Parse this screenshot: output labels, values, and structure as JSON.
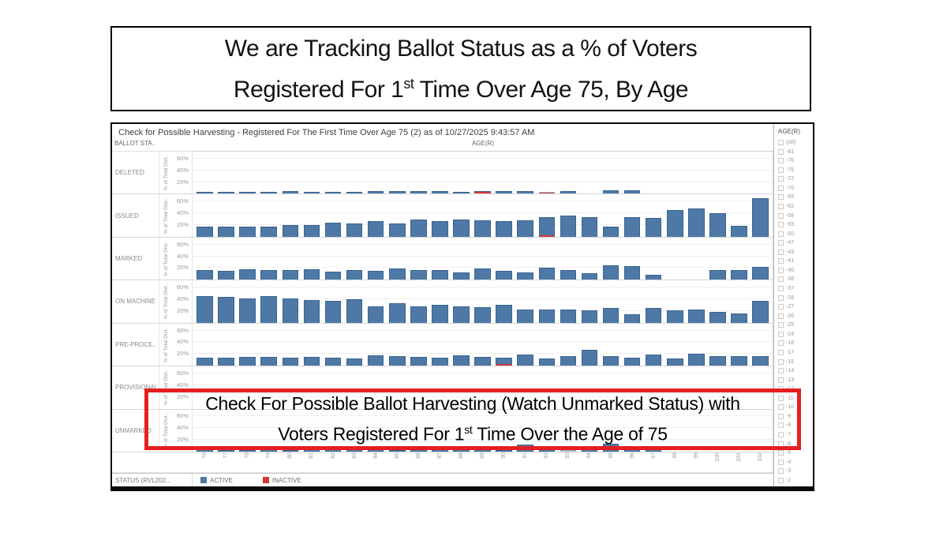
{
  "title": {
    "line1": "We are Tracking Ballot Status as a % of Voters",
    "line2_pre": "Registered For 1",
    "line2_sup": "st",
    "line2_post": " Time Over Age 75, By Age"
  },
  "annotation": {
    "line1": "Check For Possible Ballot Harvesting (Watch Unmarked Status) with",
    "line2_pre": "Voters Registered For 1",
    "line2_sup": "st",
    "line2_post": " Time Over the Age of 75",
    "border_color": "#e51f1f"
  },
  "dashboard": {
    "header": "Check for Possible Harvesting - Registered For The First Time Over Age 75 (2) as of 10/27/2025 9:43:57 AM",
    "row_dimension_header": "BALLOT STA..",
    "column_dimension_header": "AGE(R)",
    "axis_title": "% of Total Dist..",
    "legend": {
      "title": "STATUS (RVL202...",
      "items": [
        {
          "label": "ACTIVE",
          "color": "#4e79a7"
        },
        {
          "label": "INACTIVE",
          "color": "#d0393b"
        }
      ]
    },
    "filter": {
      "title": "AGE(R)",
      "items": [
        "(All)",
        "-81",
        "-76",
        "-75",
        "-72",
        "-70",
        "-65",
        "-62",
        "-58",
        "-55",
        "-50",
        "-47",
        "-43",
        "-41",
        "-40",
        "-38",
        "-37",
        "-28",
        "-27",
        "-26",
        "-25",
        "-24",
        "-18",
        "-17",
        "-15",
        "-14",
        "-13",
        "-12",
        "-11",
        "-10",
        "-9",
        "-8",
        "-7",
        "-6",
        "-5",
        "-4",
        "-3",
        "-2"
      ],
      "all_unchecked": true
    }
  },
  "chart_data": {
    "type": "bar",
    "facet_dimension": "BALLOT STATUS",
    "x_dimension": "AGE(R)",
    "x": [
      76,
      77,
      78,
      79,
      80,
      81,
      82,
      83,
      84,
      85,
      86,
      87,
      88,
      89,
      90,
      91,
      92,
      93,
      94,
      95,
      96,
      97,
      98,
      99,
      100,
      101,
      102
    ],
    "ylabel": "% of Total Dist..",
    "ylim": [
      0,
      72
    ],
    "y_ticks": [
      60,
      40,
      20
    ],
    "grid": true,
    "legend_position": "bottom",
    "bar_color": "#4e79a7",
    "inactive_color": "#d0393b",
    "muted_color": "#b9c5ce",
    "rows": [
      {
        "label": "DELETED",
        "values": [
          3,
          3,
          3,
          3,
          4,
          3,
          3,
          3,
          4,
          4,
          4,
          5,
          3,
          4,
          5,
          4,
          3,
          4,
          0,
          6,
          6,
          0,
          0,
          0,
          0,
          0,
          0
        ],
        "inactive_ages": [
          89,
          92
        ],
        "muted_ages": [
          92
        ]
      },
      {
        "label": "ISSUED",
        "values": [
          17,
          17,
          18,
          17,
          20,
          20,
          24,
          23,
          27,
          23,
          30,
          27,
          30,
          28,
          27,
          28,
          34,
          36,
          33,
          17,
          33,
          32,
          45,
          49,
          40,
          19,
          66
        ],
        "inactive_ages": [
          92
        ],
        "muted_ages": []
      },
      {
        "label": "MARKED",
        "values": [
          17,
          15,
          18,
          16,
          17,
          18,
          14,
          17,
          15,
          19,
          16,
          17,
          13,
          19,
          15,
          13,
          21,
          16,
          11,
          24,
          23,
          9,
          0,
          0,
          17,
          17,
          22
        ],
        "inactive_ages": [],
        "muted_ages": []
      },
      {
        "label": "ON MACHINE",
        "values": [
          45,
          44,
          42,
          45,
          42,
          39,
          37,
          40,
          28,
          33,
          28,
          31,
          28,
          26,
          31,
          23,
          22,
          23,
          21,
          25,
          14,
          25,
          21,
          23,
          18,
          16,
          38
        ],
        "inactive_ages": [],
        "muted_ages": []
      },
      {
        "label": "PRE-PROCE..",
        "values": [
          13,
          13,
          15,
          15,
          14,
          15,
          14,
          12,
          18,
          16,
          15,
          14,
          18,
          15,
          14,
          19,
          12,
          16,
          27,
          16,
          14,
          19,
          12,
          21,
          17,
          16,
          17
        ],
        "inactive_ages": [
          90
        ],
        "muted_ages": []
      },
      {
        "label": "PROVISIONAL",
        "values": null,
        "hidden_by_annotation": true
      },
      {
        "label": "UNMARKED",
        "values": [
          4,
          3,
          2,
          4,
          3,
          4,
          6,
          4,
          6,
          2,
          5,
          6,
          4,
          4,
          3,
          12,
          6,
          2,
          5,
          14,
          5,
          8,
          0,
          0,
          0,
          0,
          0
        ],
        "inactive_ages": [],
        "muted_ages": [
          93
        ]
      }
    ]
  }
}
